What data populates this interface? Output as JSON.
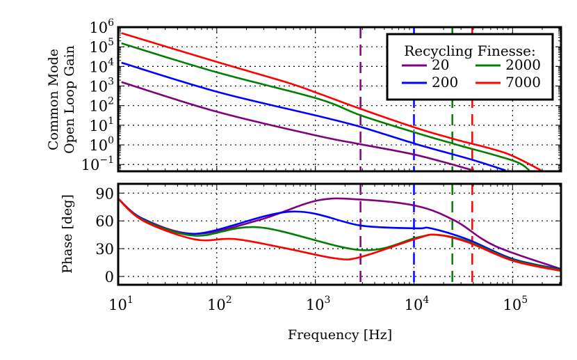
{
  "chart_data": [
    {
      "type": "line",
      "panel": "gain",
      "ylabel_lines": [
        "Common Mode",
        "Open Loop Gain"
      ],
      "xscale": "log",
      "yscale": "log",
      "xlim": [
        10,
        310000
      ],
      "ylim": [
        0.045,
        1000000
      ],
      "yticks": [
        {
          "base": "10",
          "exp": "6"
        },
        {
          "base": "10",
          "exp": "5"
        },
        {
          "base": "10",
          "exp": "4"
        },
        {
          "base": "10",
          "exp": "3"
        },
        {
          "base": "10",
          "exp": "2"
        },
        {
          "base": "10",
          "exp": "1"
        },
        {
          "base": "10",
          "exp": "0"
        },
        {
          "base": "10",
          "exp": "−1"
        }
      ],
      "ytick_values": [
        1000000,
        100000,
        10000,
        1000,
        100,
        10,
        1,
        0.1
      ],
      "grid": true,
      "legend": {
        "title": "Recycling Finesse:",
        "placement": "top-right",
        "columns": 2
      },
      "series": [
        {
          "name": "20",
          "color": "#800080",
          "x": [
            10.8,
            100,
            1050,
            2880,
            10700,
            38000
          ],
          "y": [
            1580,
            49,
            2.9,
            1.07,
            0.3,
            0.054
          ]
        },
        {
          "name": "200",
          "color": "#0000ff",
          "x": [
            10.8,
            100,
            1050,
            2880,
            10700,
            38000,
            85000
          ],
          "y": [
            15500,
            513,
            30,
            8.3,
            1.07,
            0.18,
            0.05
          ]
        },
        {
          "name": "2000",
          "color": "#008000",
          "x": [
            10.8,
            100,
            1050,
            2880,
            10700,
            26300,
            102000,
            148000
          ],
          "y": [
            151000,
            5000,
            229,
            32,
            4,
            1.07,
            0.155,
            0.05
          ]
        },
        {
          "name": "7000",
          "color": "#ff0000",
          "x": [
            10.8,
            100,
            525,
            1050,
            2880,
            10700,
            26300,
            85000,
            195000
          ],
          "y": [
            500000,
            17000,
            1480,
            437,
            68,
            7.1,
            1.9,
            0.38,
            0.05
          ]
        }
      ],
      "markers": [
        {
          "series": "20",
          "x": 2870
        },
        {
          "series": "200",
          "x": 10000
        },
        {
          "series": "2000",
          "x": 24500
        },
        {
          "series": "7000",
          "x": 39000
        }
      ]
    },
    {
      "type": "line",
      "panel": "phase",
      "ylabel": "Phase [deg]",
      "xlabel": "Frequency [Hz]",
      "xscale": "log",
      "xlim": [
        10,
        310000
      ],
      "ylim": [
        -9,
        100
      ],
      "yticks": [
        "90",
        "60",
        "30",
        "0"
      ],
      "ytick_values": [
        90,
        60,
        30,
        0
      ],
      "xticks": [
        {
          "base": "10",
          "exp": "1"
        },
        {
          "base": "10",
          "exp": "2"
        },
        {
          "base": "10",
          "exp": "3"
        },
        {
          "base": "10",
          "exp": "4"
        },
        {
          "base": "10",
          "exp": "5"
        }
      ],
      "xtick_values": [
        10,
        100,
        1000,
        10000,
        100000
      ],
      "grid": true,
      "series": [
        {
          "name": "20",
          "color": "#800080",
          "x": [
            10,
            18,
            60,
            270,
            1050,
            2880,
            10700,
            26300,
            66000,
            310000
          ],
          "y": [
            84,
            62,
            46,
            61,
            82,
            83,
            76,
            60,
            33,
            8
          ]
        },
        {
          "name": "200",
          "color": "#0000ff",
          "x": [
            10,
            18,
            60,
            560,
            2880,
            10700,
            14800,
            35000,
            100000,
            310000
          ],
          "y": [
            84,
            62,
            46,
            70,
            55,
            52,
            52,
            40,
            19,
            7.5
          ]
        },
        {
          "name": "2000",
          "color": "#008000",
          "x": [
            10,
            18,
            60,
            270,
            2880,
            10700,
            17000,
            35000,
            100000,
            310000
          ],
          "y": [
            84,
            61,
            44,
            53,
            28.5,
            42,
            45,
            38,
            18,
            7
          ]
        },
        {
          "name": "7000",
          "color": "#ff0000",
          "x": [
            10,
            18,
            60,
            150,
            470,
            1600,
            2880,
            10700,
            17000,
            35000,
            100000,
            310000
          ],
          "y": [
            84,
            60,
            40,
            40.5,
            31,
            19.5,
            21,
            41,
            45,
            37,
            17,
            6
          ]
        }
      ],
      "markers": [
        {
          "series": "20",
          "x": 2870
        },
        {
          "series": "200",
          "x": 10000
        },
        {
          "series": "2000",
          "x": 24500
        },
        {
          "series": "7000",
          "x": 39000
        }
      ]
    }
  ]
}
